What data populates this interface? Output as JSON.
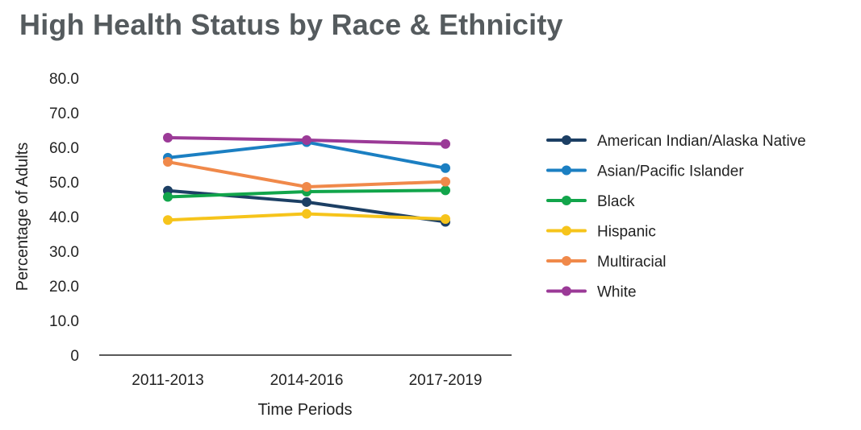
{
  "chart_data": {
    "type": "line",
    "title": "High Health Status by Race & Ethnicity",
    "xlabel": "Time Periods",
    "ylabel": "Percentage of Adults",
    "ylim": [
      0,
      80
    ],
    "yticks": [
      "0",
      "10.0",
      "20.0",
      "30.0",
      "40.0",
      "50.0",
      "60.0",
      "70.0",
      "80.0"
    ],
    "ytick_values": [
      0,
      10,
      20,
      30,
      40,
      50,
      60,
      70,
      80
    ],
    "categories": [
      "2011-2013",
      "2014-2016",
      "2017-2019"
    ],
    "grid": false,
    "legend_position": "right",
    "series": [
      {
        "name": "American Indian/Alaska Native",
        "color": "#1c3f64",
        "values": [
          47.5,
          44.2,
          38.5
        ]
      },
      {
        "name": "Asian/Pacific Islander",
        "color": "#1b7fc2",
        "values": [
          57.0,
          61.5,
          54.0
        ]
      },
      {
        "name": "Black",
        "color": "#12a54b",
        "values": [
          45.7,
          47.2,
          47.6
        ]
      },
      {
        "name": "Hispanic",
        "color": "#f6c41b",
        "values": [
          39.0,
          40.8,
          39.3
        ]
      },
      {
        "name": "Multiracial",
        "color": "#f0894a",
        "values": [
          55.8,
          48.6,
          50.1
        ]
      },
      {
        "name": "White",
        "color": "#9b3a97",
        "values": [
          62.8,
          62.1,
          61.0
        ]
      }
    ]
  }
}
